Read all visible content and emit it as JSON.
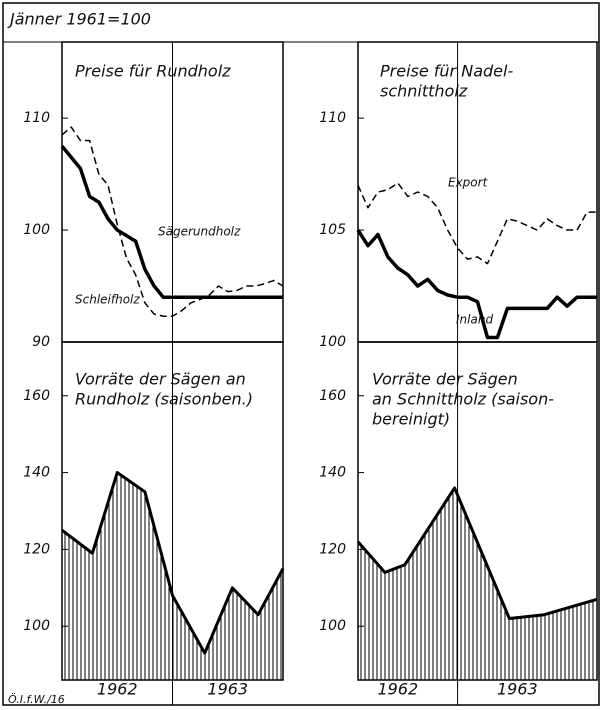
{
  "header": "Jänner 1961=100",
  "footer": "Ö.I.f.W./16",
  "chart_data": [
    {
      "type": "line",
      "title": [
        "Preise für Rundholz"
      ],
      "x": [
        0,
        1,
        2,
        3,
        4,
        5,
        6,
        7,
        8,
        9,
        10,
        11,
        12,
        13,
        14,
        15,
        16,
        17,
        18,
        19,
        20,
        21,
        22,
        23,
        24
      ],
      "xlim": [
        0,
        24
      ],
      "ylim": [
        90,
        116.8
      ],
      "yticks": [
        90,
        100,
        110
      ],
      "series": [
        {
          "name": "Sägerundholz",
          "color": "#000",
          "style": "solid",
          "values": [
            107.5,
            106.5,
            105.5,
            103,
            102.5,
            101,
            100,
            99.5,
            99,
            96.5,
            95,
            94,
            94,
            94,
            94,
            94,
            94,
            94,
            94,
            94,
            94,
            94,
            94,
            94,
            94
          ]
        },
        {
          "name": "Schleifholz",
          "color": "#000",
          "style": "dashed",
          "values": [
            108.5,
            109.2,
            108,
            108,
            105,
            104,
            100.5,
            97.5,
            96,
            93.5,
            92.5,
            92.3,
            92.3,
            92.8,
            93.5,
            93.8,
            94.2,
            95,
            94.5,
            94.6,
            95,
            95,
            95.2,
            95.5,
            95
          ]
        }
      ]
    },
    {
      "type": "line",
      "title": [
        "Preise für Nadel-",
        "schnittholz"
      ],
      "x": [
        0,
        1,
        2,
        3,
        4,
        5,
        6,
        7,
        8,
        9,
        10,
        11,
        12,
        13,
        14,
        15,
        16,
        17,
        18,
        19,
        20,
        21,
        22,
        23,
        24
      ],
      "xlim": [
        0,
        24
      ],
      "ylim": [
        100,
        113.4
      ],
      "yticks": [
        100,
        105,
        110
      ],
      "series": [
        {
          "name": "Export",
          "color": "#000",
          "style": "dashed",
          "values": [
            107,
            106,
            106.7,
            106.8,
            107.1,
            106.5,
            106.7,
            106.5,
            106,
            105,
            104.2,
            103.7,
            103.8,
            103.5,
            104.5,
            105.5,
            105.4,
            105.2,
            105,
            105.5,
            105.2,
            105,
            105,
            105.8,
            105.8
          ]
        },
        {
          "name": "Inland",
          "color": "#000",
          "style": "solid",
          "values": [
            105,
            104.3,
            104.8,
            103.8,
            103.3,
            103,
            102.5,
            102.8,
            102.3,
            102.1,
            102,
            102,
            101.8,
            100.2,
            100.2,
            101.5,
            101.5,
            101.5,
            101.5,
            101.5,
            102,
            101.6,
            102,
            102,
            102
          ]
        }
      ]
    },
    {
      "type": "area",
      "title": [
        "Vorräte der Sägen an",
        "Rundholz (saisonben.)"
      ],
      "x": [
        0,
        3.3,
        6,
        9,
        12,
        15.5,
        18.5,
        21.3,
        24
      ],
      "xlim": [
        0,
        24
      ],
      "xticks": [
        {
          "value": 6,
          "label": "1962"
        },
        {
          "value": 18,
          "label": "1963"
        }
      ],
      "ylim": [
        86,
        174
      ],
      "yticks": [
        100,
        120,
        140,
        160
      ],
      "series": [
        {
          "color": "#000",
          "values": [
            125,
            119,
            140,
            135,
            108,
            93,
            110,
            103,
            115
          ]
        }
      ]
    },
    {
      "type": "area",
      "title": [
        "Vorräte der Sägen",
        "an Schnittholz (saison-",
        "bereinigt)"
      ],
      "x": [
        0,
        2.7,
        4.7,
        9.7,
        15.2,
        18.7,
        24
      ],
      "xlim": [
        0,
        24
      ],
      "xticks": [
        {
          "value": 4,
          "label": "1962"
        },
        {
          "value": 16,
          "label": "1963"
        }
      ],
      "ylim": [
        86,
        174
      ],
      "yticks": [
        100,
        120,
        140,
        160
      ],
      "series": [
        {
          "color": "#000",
          "values": [
            122,
            114,
            116,
            136,
            102,
            103,
            107
          ]
        }
      ]
    }
  ]
}
